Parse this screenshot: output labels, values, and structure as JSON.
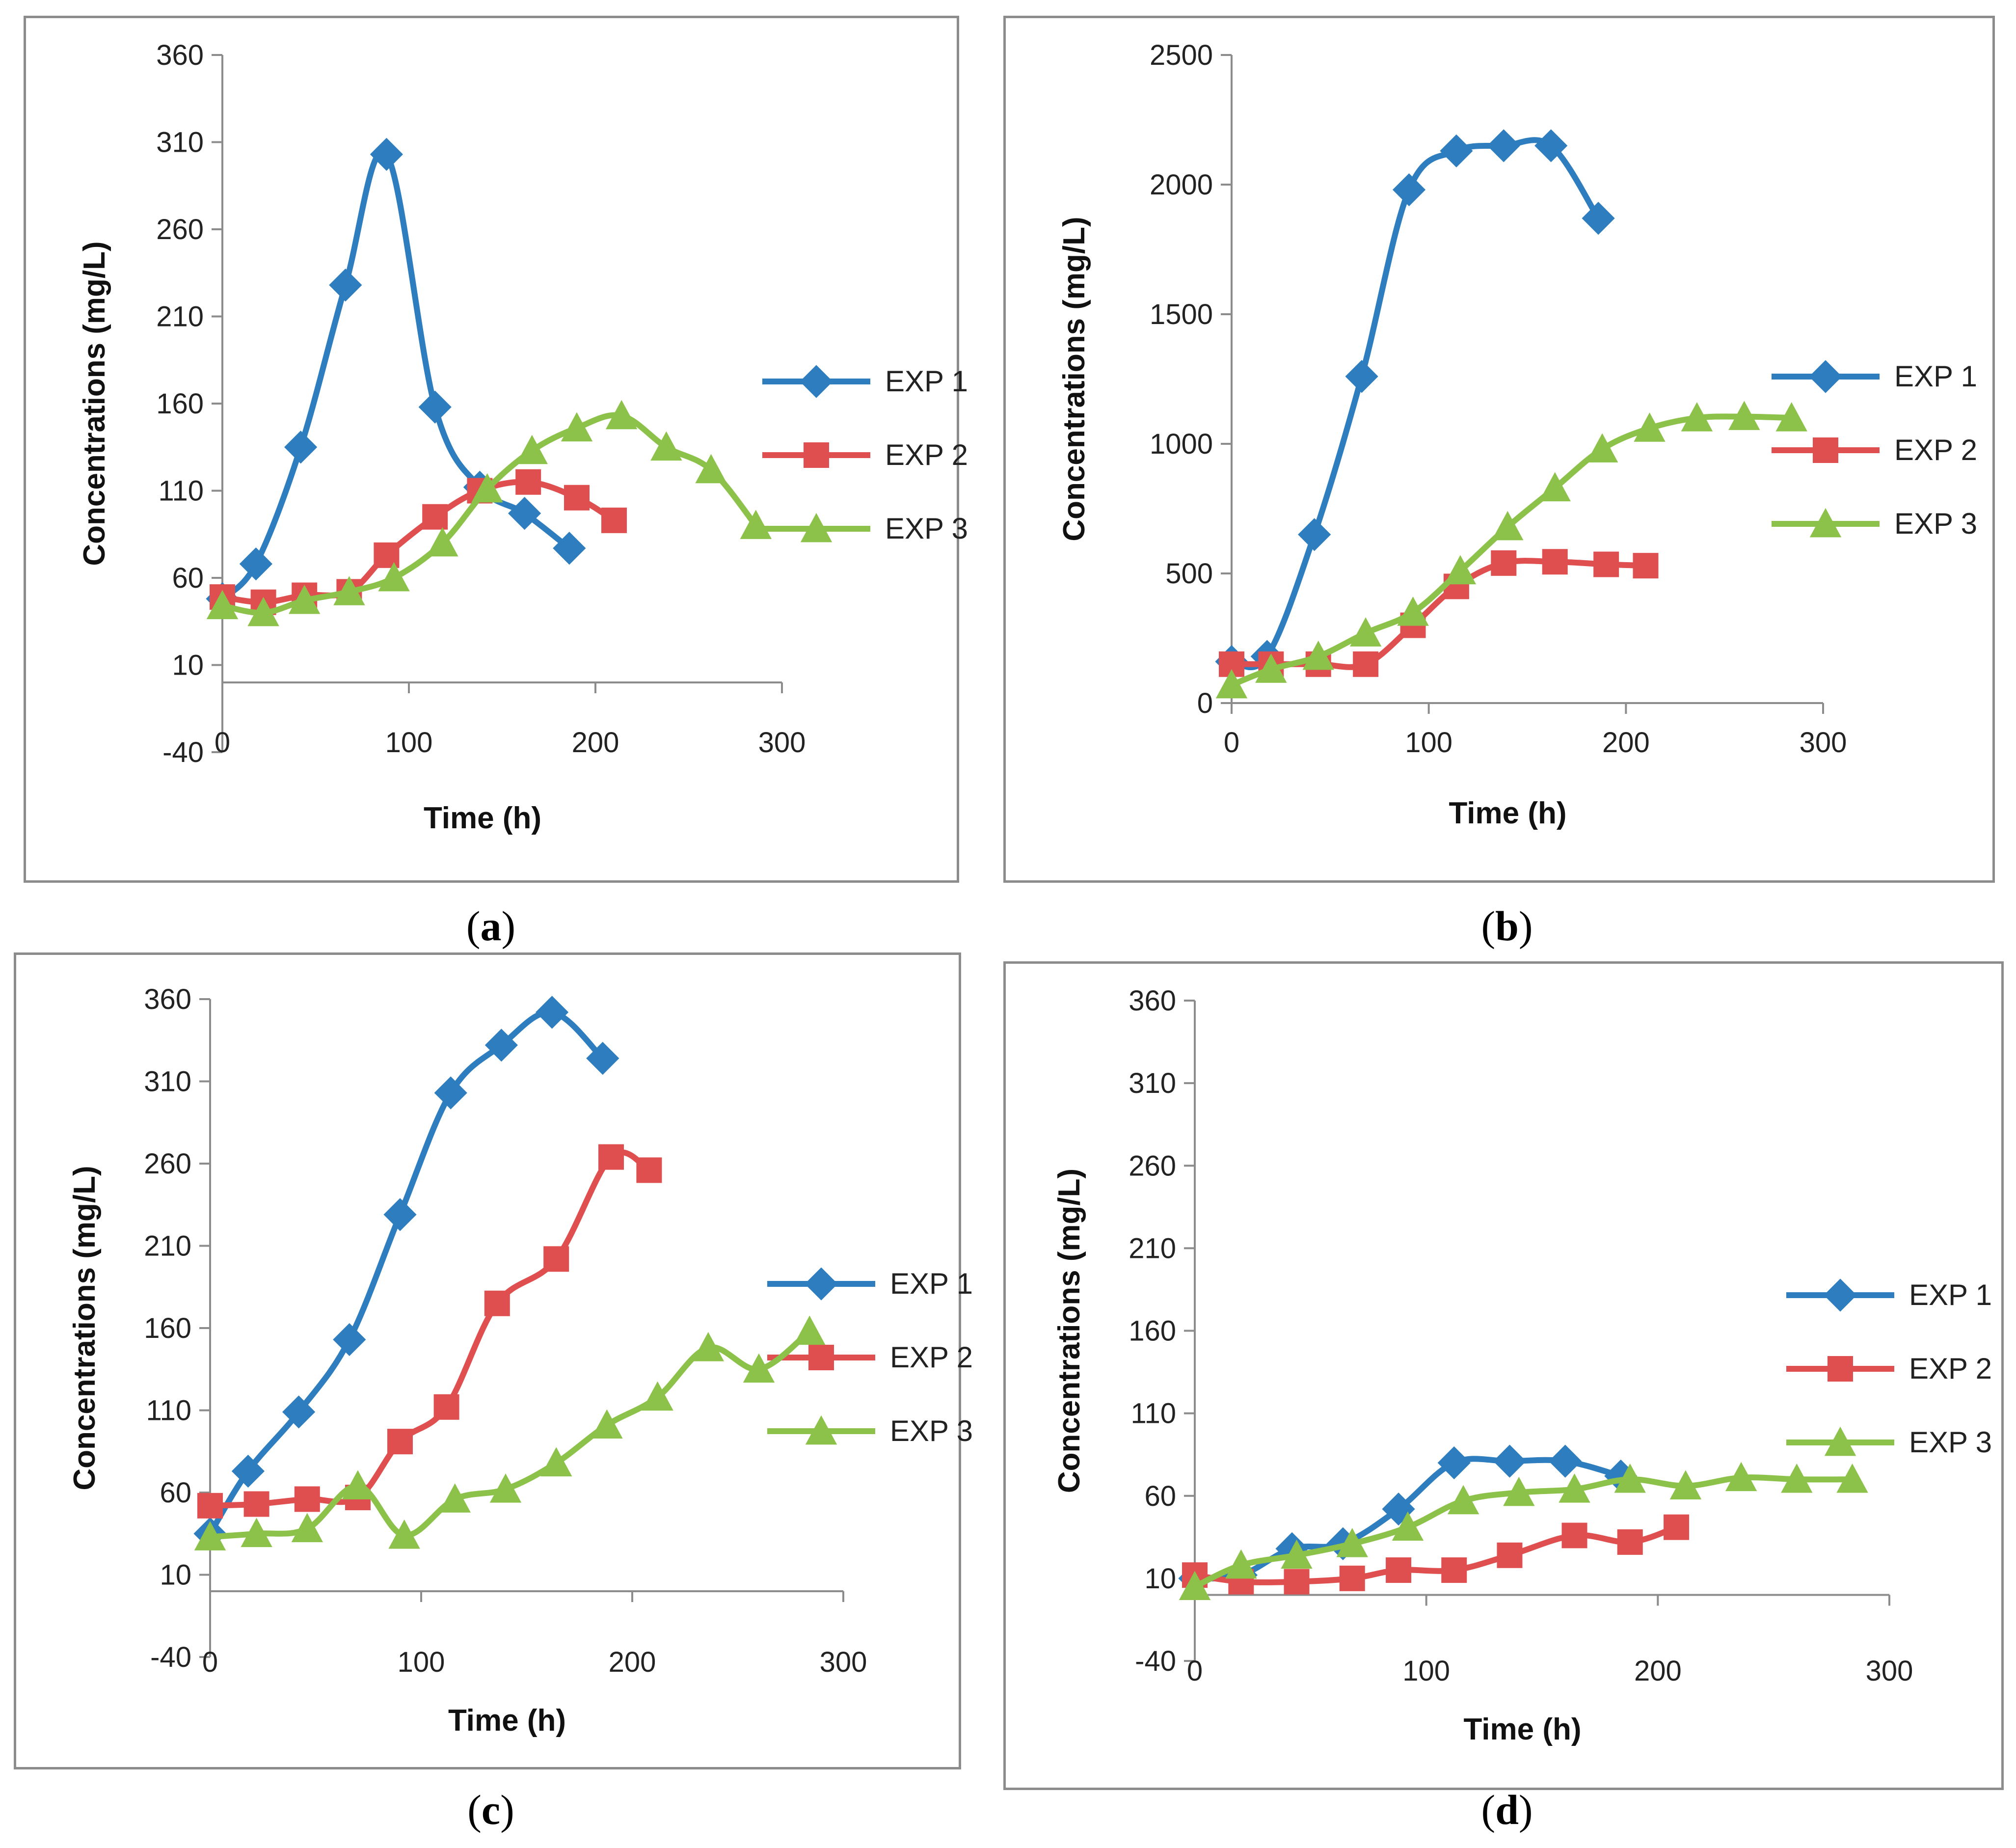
{
  "colors": {
    "EXP 1": "#2e7ebf",
    "EXP 2": "#e04f4f",
    "EXP 3": "#8cc24a",
    "axis": "#8c8c8c"
  },
  "chart_data": [
    {
      "panel": "a",
      "caption_text": "a",
      "type": "line",
      "xlabel": "Time (h)",
      "ylabel": "Concentrations (mg/L)",
      "xlim": [
        0,
        300
      ],
      "ylim": [
        -40,
        360
      ],
      "xticks": [
        0,
        100,
        200,
        300
      ],
      "yticks": [
        -40,
        10,
        60,
        110,
        160,
        210,
        260,
        310,
        360
      ],
      "legend": "right",
      "series": [
        {
          "name": "EXP 1",
          "marker": "diamond",
          "x": [
            0,
            18,
            42,
            66,
            88,
            114,
            138,
            162,
            186
          ],
          "y": [
            48,
            68,
            135,
            228,
            303,
            158,
            112,
            97,
            77
          ]
        },
        {
          "name": "EXP 2",
          "marker": "square",
          "x": [
            0,
            22,
            44,
            68,
            88,
            114,
            138,
            164,
            190,
            210
          ],
          "y": [
            49,
            46,
            50,
            52,
            73,
            95,
            110,
            115,
            106,
            93
          ]
        },
        {
          "name": "EXP 3",
          "marker": "triangle",
          "x": [
            0,
            22,
            44,
            68,
            92,
            118,
            142,
            166,
            190,
            214,
            238,
            262,
            286
          ],
          "y": [
            44,
            40,
            47,
            52,
            60,
            80,
            111,
            133,
            146,
            153,
            135,
            122,
            90
          ]
        }
      ]
    },
    {
      "panel": "b",
      "caption_text": "b",
      "type": "line",
      "xlabel": "Time (h)",
      "ylabel": "Concentrations (mg/L)",
      "xlim": [
        0,
        300
      ],
      "ylim": [
        0,
        2500
      ],
      "xticks": [
        0,
        100,
        200,
        300
      ],
      "yticks": [
        0,
        500,
        1000,
        1500,
        2000,
        2500
      ],
      "legend": "right",
      "series": [
        {
          "name": "EXP 1",
          "marker": "diamond",
          "x": [
            0,
            18,
            42,
            66,
            90,
            114,
            138,
            162,
            186
          ],
          "y": [
            160,
            180,
            650,
            1260,
            1980,
            2130,
            2150,
            2150,
            1870
          ]
        },
        {
          "name": "EXP 2",
          "marker": "square",
          "x": [
            0,
            20,
            44,
            68,
            92,
            114,
            138,
            164,
            190,
            210
          ],
          "y": [
            150,
            150,
            150,
            150,
            300,
            450,
            540,
            545,
            535,
            530
          ]
        },
        {
          "name": "EXP 3",
          "marker": "triangle",
          "x": [
            0,
            20,
            44,
            68,
            92,
            116,
            140,
            164,
            188,
            212,
            236,
            260,
            284
          ],
          "y": [
            70,
            130,
            180,
            270,
            350,
            510,
            680,
            830,
            980,
            1060,
            1100,
            1105,
            1100
          ]
        }
      ]
    },
    {
      "panel": "c",
      "caption_text": "c",
      "type": "line",
      "xlabel": "Time (h)",
      "ylabel": "Concentrations (mg/L)",
      "xlim": [
        0,
        300
      ],
      "ylim": [
        -40,
        360
      ],
      "xticks": [
        0,
        100,
        200,
        300
      ],
      "yticks": [
        -40,
        10,
        60,
        110,
        160,
        210,
        260,
        310,
        360
      ],
      "legend": "right",
      "series": [
        {
          "name": "EXP 1",
          "marker": "diamond",
          "x": [
            0,
            18,
            42,
            66,
            90,
            114,
            138,
            162,
            186
          ],
          "y": [
            35,
            73,
            109,
            153,
            229,
            303,
            332,
            352,
            324
          ]
        },
        {
          "name": "EXP 2",
          "marker": "square",
          "x": [
            0,
            22,
            46,
            70,
            90,
            112,
            136,
            164,
            190,
            208
          ],
          "y": [
            52,
            53,
            56,
            57,
            91,
            112,
            175,
            202,
            264,
            256
          ]
        },
        {
          "name": "EXP 3",
          "marker": "triangle",
          "x": [
            0,
            22,
            46,
            70,
            92,
            116,
            140,
            164,
            188,
            212,
            236,
            260,
            284
          ],
          "y": [
            33,
            35,
            38,
            64,
            34,
            56,
            62,
            78,
            101,
            118,
            148,
            135,
            158
          ]
        }
      ]
    },
    {
      "panel": "d",
      "caption_text": "d",
      "type": "line",
      "xlabel": "Time (h)",
      "ylabel": "Concentrations (mg/L)",
      "xlim": [
        0,
        300
      ],
      "ylim": [
        -40,
        360
      ],
      "xticks": [
        0,
        100,
        200,
        300
      ],
      "yticks": [
        -40,
        10,
        60,
        110,
        160,
        210,
        260,
        310,
        360
      ],
      "legend": "right",
      "series": [
        {
          "name": "EXP 1",
          "marker": "diamond",
          "x": [
            0,
            20,
            42,
            64,
            88,
            112,
            136,
            160,
            184
          ],
          "y": [
            10,
            12,
            28,
            31,
            52,
            80,
            81,
            81,
            72
          ]
        },
        {
          "name": "EXP 2",
          "marker": "square",
          "x": [
            0,
            20,
            44,
            68,
            88,
            112,
            136,
            164,
            188,
            208
          ],
          "y": [
            12,
            8,
            8,
            10,
            15,
            15,
            24,
            36,
            32,
            41
          ]
        },
        {
          "name": "EXP 3",
          "marker": "triangle",
          "x": [
            0,
            20,
            44,
            68,
            92,
            116,
            140,
            164,
            188,
            212,
            236,
            260,
            284
          ],
          "y": [
            5,
            18,
            24,
            31,
            41,
            57,
            62,
            64,
            70,
            66,
            71,
            70,
            70
          ]
        }
      ]
    }
  ]
}
